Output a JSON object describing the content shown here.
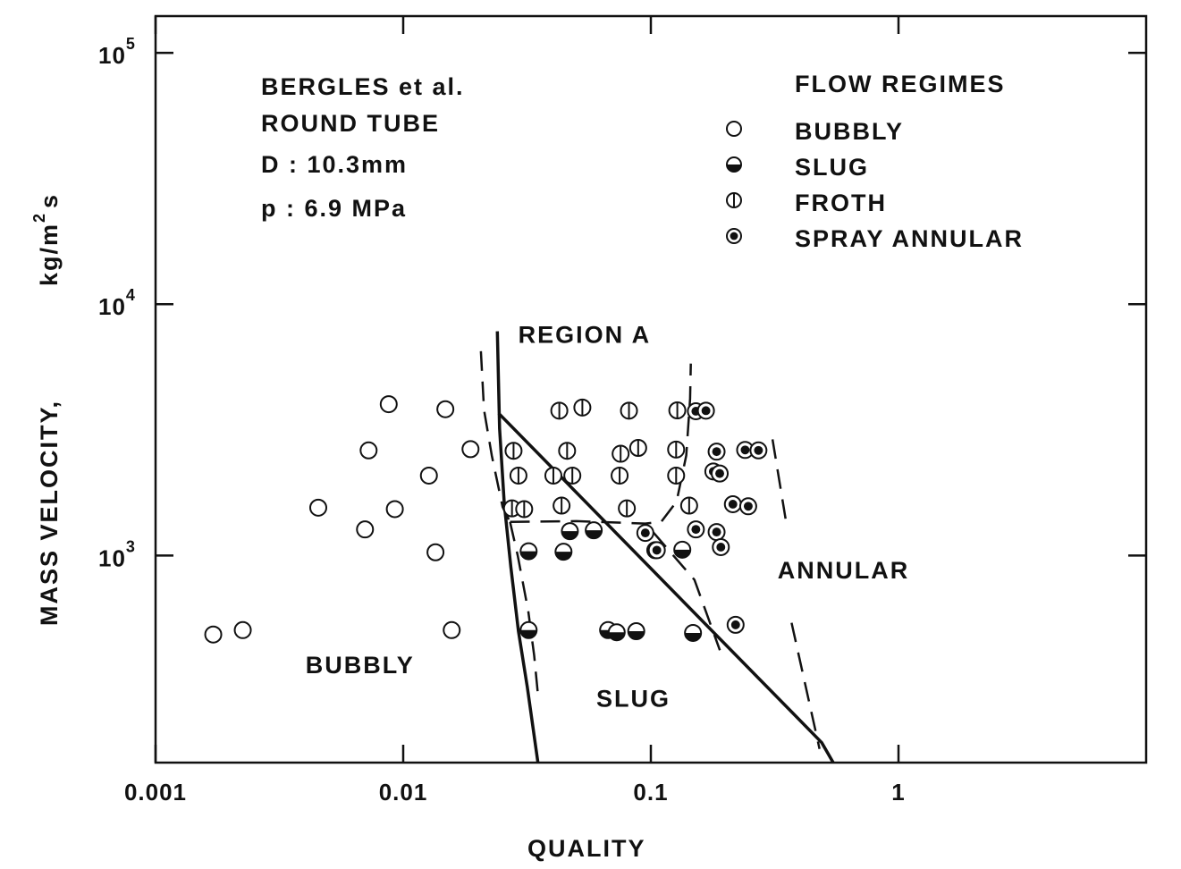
{
  "chart_data": {
    "type": "scatter",
    "xscale": "log",
    "yscale": "log",
    "xlim": [
      0.001,
      10
    ],
    "ylim": [
      150,
      140000
    ],
    "xlabel": "QUALITY",
    "ylabel_prefix": "MASS VELOCITY,",
    "ylabel_unit": "kg/m",
    "ylabel_sup": "2",
    "ylabel_suffix": "s",
    "xticks": [
      {
        "value": 0.001,
        "label": "0.001"
      },
      {
        "value": 0.01,
        "label": "0.01"
      },
      {
        "value": 0.1,
        "label": "0.1"
      },
      {
        "value": 1,
        "label": "1"
      }
    ],
    "yticks": [
      {
        "value": 1000,
        "base": "10",
        "exp": "3"
      },
      {
        "value": 10000,
        "base": "10",
        "exp": "4"
      },
      {
        "value": 100000,
        "base": "10",
        "exp": "5"
      }
    ],
    "info": [
      "BERGLES et al.",
      "ROUND TUBE",
      "D : 10.3mm",
      "p : 6.9 MPa"
    ],
    "legend": {
      "title": "FLOW REGIMES",
      "position": "top-right",
      "items": [
        {
          "key": "bubbly",
          "label": "BUBBLY"
        },
        {
          "key": "slug",
          "label": "SLUG"
        },
        {
          "key": "froth",
          "label": "FROTH"
        },
        {
          "key": "spray",
          "label": "SPRAY ANNULAR"
        }
      ]
    },
    "region_labels": [
      {
        "text": "REGION A",
        "x": 0.054,
        "y": 7600
      },
      {
        "text": "BUBBLY",
        "x": 0.0067,
        "y": 370
      },
      {
        "text": "SLUG",
        "x": 0.085,
        "y": 272
      },
      {
        "text": "ANNULAR",
        "x": 0.6,
        "y": 880
      }
    ],
    "series": [
      {
        "type": "bubbly",
        "points": [
          [
            0.00171,
            485
          ],
          [
            0.00225,
            505
          ],
          [
            0.00454,
            1550
          ],
          [
            0.00701,
            1270
          ],
          [
            0.00725,
            2620
          ],
          [
            0.00874,
            4000
          ],
          [
            0.00925,
            1530
          ],
          [
            0.0127,
            2080
          ],
          [
            0.0135,
            1030
          ],
          [
            0.0148,
            3820
          ],
          [
            0.0157,
            505
          ],
          [
            0.0187,
            2650
          ]
        ]
      },
      {
        "type": "slug",
        "points": [
          [
            0.0321,
            505
          ],
          [
            0.0321,
            1040
          ],
          [
            0.0444,
            1035
          ],
          [
            0.0471,
            1250
          ],
          [
            0.0588,
            1260
          ],
          [
            0.0672,
            505
          ],
          [
            0.0728,
            495
          ],
          [
            0.0873,
            500
          ],
          [
            0.1042,
            1050
          ],
          [
            0.134,
            1055
          ],
          [
            0.148,
            492
          ]
        ]
      },
      {
        "type": "froth",
        "points": [
          [
            0.0275,
            1540
          ],
          [
            0.0279,
            2610
          ],
          [
            0.0292,
            2080
          ],
          [
            0.0308,
            1530
          ],
          [
            0.0404,
            2080
          ],
          [
            0.0427,
            3770
          ],
          [
            0.0436,
            1580
          ],
          [
            0.0459,
            2610
          ],
          [
            0.0482,
            2080
          ],
          [
            0.0529,
            3880
          ],
          [
            0.0748,
            2080
          ],
          [
            0.0755,
            2540
          ],
          [
            0.08,
            1540
          ],
          [
            0.0816,
            3770
          ],
          [
            0.0889,
            2680
          ],
          [
            0.1265,
            2640
          ],
          [
            0.1265,
            2080
          ],
          [
            0.1279,
            3780
          ],
          [
            0.1428,
            1580
          ]
        ]
      },
      {
        "type": "spray",
        "points": [
          [
            0.095,
            1230
          ],
          [
            0.1057,
            1050
          ],
          [
            0.152,
            3750
          ],
          [
            0.152,
            1270
          ],
          [
            0.1669,
            3770
          ],
          [
            0.1843,
            2590
          ],
          [
            0.1788,
            2160
          ],
          [
            0.1897,
            2120
          ],
          [
            0.1843,
            1240
          ],
          [
            0.1917,
            1080
          ],
          [
            0.2144,
            1600
          ],
          [
            0.2199,
            530
          ],
          [
            0.2403,
            2630
          ],
          [
            0.2473,
            1570
          ],
          [
            0.272,
            2620
          ]
        ]
      }
    ],
    "solid_lines": [
      [
        [
          0.024,
          7800
        ],
        [
          0.0245,
          3200
        ],
        [
          0.0256,
          1600
        ],
        [
          0.0272,
          900
        ],
        [
          0.0292,
          500
        ],
        [
          0.0317,
          300
        ],
        [
          0.035,
          150
        ]
      ],
      [
        [
          0.0243,
          3680
        ],
        [
          0.49,
          180
        ],
        [
          0.545,
          150
        ]
      ]
    ],
    "dashed_lines": [
      [
        [
          0.0206,
          6500
        ],
        [
          0.0212,
          3800
        ],
        [
          0.0228,
          2500
        ],
        [
          0.0252,
          1560
        ],
        [
          0.027,
          1360
        ]
      ],
      [
        [
          0.027,
          1360
        ],
        [
          0.029,
          1000
        ],
        [
          0.032,
          600
        ],
        [
          0.0338,
          400
        ],
        [
          0.035,
          280
        ]
      ],
      [
        [
          0.027,
          1360
        ],
        [
          0.05,
          1370
        ],
        [
          0.095,
          1340
        ],
        [
          0.11,
          1360
        ],
        [
          0.127,
          1640
        ],
        [
          0.139,
          2500
        ],
        [
          0.144,
          4200
        ],
        [
          0.145,
          5800
        ]
      ],
      [
        [
          0.102,
          1240
        ],
        [
          0.15,
          800
        ],
        [
          0.19,
          420
        ]
      ],
      [
        [
          0.31,
          2900
        ],
        [
          0.35,
          1400
        ]
      ],
      [
        [
          0.37,
          540
        ],
        [
          0.48,
          170
        ]
      ]
    ]
  }
}
